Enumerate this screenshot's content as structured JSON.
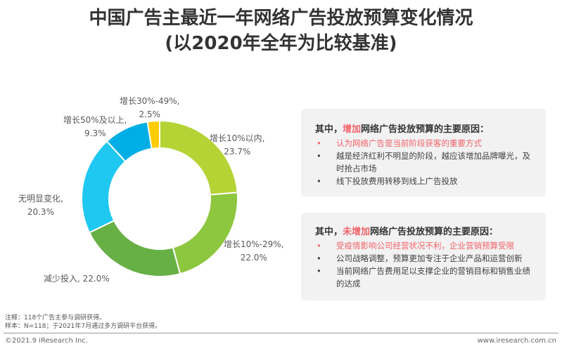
{
  "title": {
    "line1": "中国广告主最近一年网络广告投放预算变化情况",
    "line2": "(以2020年全年为比较基准)"
  },
  "chart_data": {
    "type": "pie",
    "donut": true,
    "unit": "%",
    "slices": [
      {
        "label": "增长10%以内,",
        "value": 23.7,
        "value_label": "23.7%",
        "color": "#b5d334"
      },
      {
        "label": "增长10%-29%,",
        "value": 22.0,
        "value_label": "22.0%",
        "color": "#8dc63f"
      },
      {
        "label": "减少投入,",
        "value": 22.0,
        "value_label": "22.0%",
        "color": "#66b046"
      },
      {
        "label": "无明显变化,",
        "value": 20.3,
        "value_label": "20.3%",
        "color": "#1ec8f0"
      },
      {
        "label": "增长50%及以上,",
        "value": 9.3,
        "value_label": "9.3%",
        "color": "#00aee6"
      },
      {
        "label": "增长30%-49%,",
        "value": 2.5,
        "value_label": "2.5%",
        "color": "#ffcc00"
      }
    ]
  },
  "box_increase": {
    "prefix": "其中，",
    "highlight": "增加",
    "suffix": "网络广告投放预算的主要原因：",
    "items": [
      "认为网络广告是当前阶段获客的重要方式",
      "越是经济红利不明显的阶段，越应该增加品牌曝光，及时抢占市场",
      "线下投放费用转移到线上广告投放"
    ]
  },
  "box_no_increase": {
    "prefix": "其中，",
    "highlight": "未增加",
    "suffix": "网络广告投放预算的主要原因：",
    "items": [
      "受疫情影响公司经营状况不利，企业营销预算受限",
      "公司战略调整，预算更加专注于企业产品和运营创新",
      "当前网络广告费用足以支撑企业的营销目标和销售业绩的达成"
    ]
  },
  "notes": {
    "note": "注释：118个广告主参与调研获得。",
    "sample": "样本：N=118；于2021年7月通过多方调研平台获得。"
  },
  "footer": {
    "copyright": "©2021.9 iResearch Inc.",
    "website": "www.iresearch.com.cn"
  },
  "highlight_color": "#f0636a"
}
